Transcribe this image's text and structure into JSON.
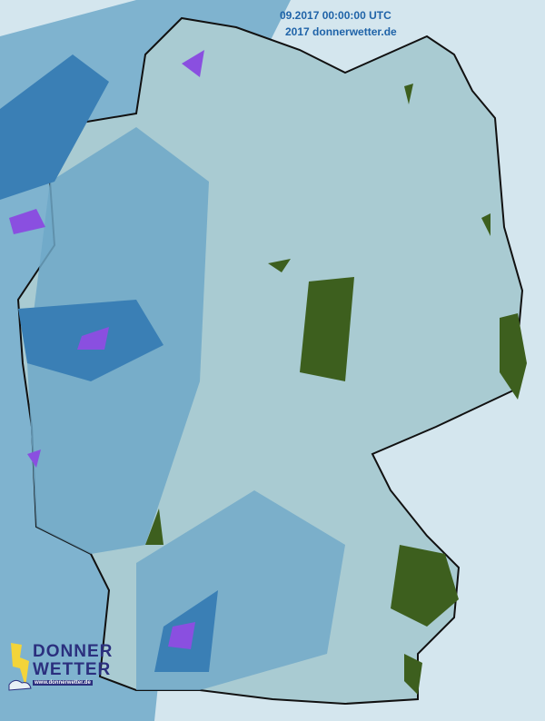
{
  "map": {
    "timestamp_label": "09.2017 00:00:00 UTC",
    "copyright_label": "2017 donnerwetter.de",
    "colors": {
      "background": "#d4e6ee",
      "land": "#a9cbd2",
      "light_precip": "#8dbdd0",
      "medium_precip": "#4f94c0",
      "heavy_precip": "#2d6fa8",
      "very_heavy_precip": "#8a4fe0",
      "forest_green": "#3d5f1e",
      "border": "#111111"
    }
  },
  "logo": {
    "line1": "DONNER",
    "line2": "WETTER",
    "url": "www.donnerwetter.de",
    "icon": "lightning-cloud-icon"
  }
}
